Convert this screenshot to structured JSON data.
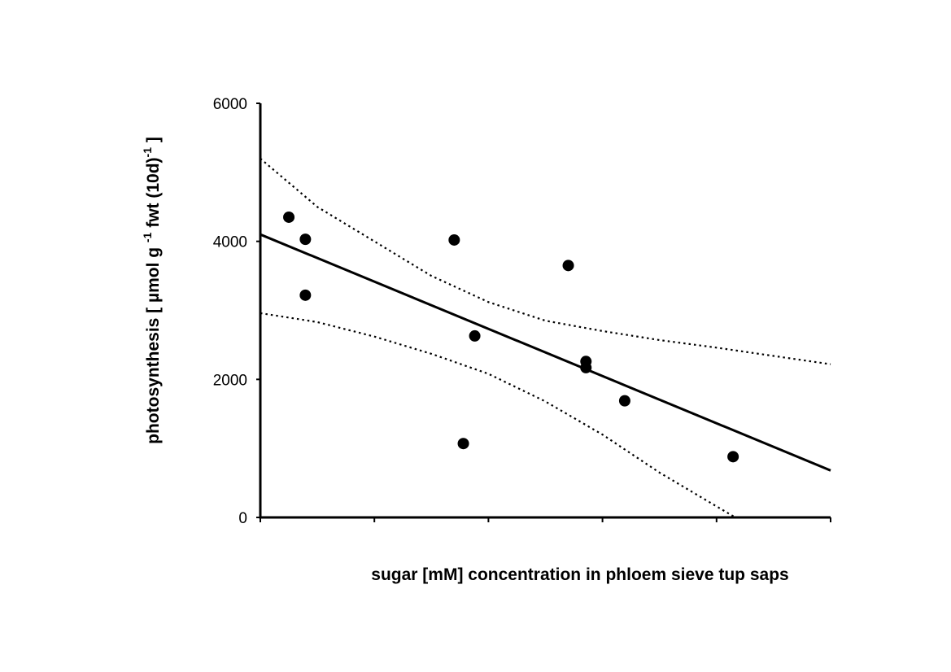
{
  "chart_data": {
    "type": "scatter",
    "xlabel": "sugar [mM] concentration in phloem sieve tup saps",
    "ylabel_parts": [
      "photosynthesis [ µmol g ",
      "-1",
      " fwt (10d)",
      "-1",
      " ]"
    ],
    "ylim": [
      0,
      6000
    ],
    "yticks": [
      "0",
      "2000",
      "4000",
      "6000"
    ],
    "xlim": [
      0,
      100
    ],
    "x_tick_count": 6,
    "x_tick_labels_shown": false,
    "grid": false,
    "legend": "none",
    "points": [
      {
        "x": 5.0,
        "y": 4350
      },
      {
        "x": 7.9,
        "y": 4030
      },
      {
        "x": 7.9,
        "y": 3220
      },
      {
        "x": 34.0,
        "y": 4020
      },
      {
        "x": 35.6,
        "y": 1070
      },
      {
        "x": 37.6,
        "y": 2630
      },
      {
        "x": 54.0,
        "y": 3650
      },
      {
        "x": 57.1,
        "y": 2260
      },
      {
        "x": 57.1,
        "y": 2170
      },
      {
        "x": 63.9,
        "y": 1690
      },
      {
        "x": 82.9,
        "y": 880
      }
    ],
    "regression_line": {
      "x": [
        0,
        100
      ],
      "y": [
        4100,
        680
      ]
    },
    "confidence_upper": {
      "x": [
        0,
        10,
        20,
        30,
        40,
        50,
        60,
        70,
        80,
        90,
        100
      ],
      "y": [
        5200,
        4500,
        4000,
        3500,
        3120,
        2850,
        2700,
        2570,
        2460,
        2340,
        2220
      ]
    },
    "confidence_lower": {
      "x": [
        0,
        10,
        20,
        30,
        40,
        50,
        60,
        70,
        80,
        83.3
      ],
      "y": [
        2960,
        2830,
        2620,
        2370,
        2080,
        1680,
        1200,
        650,
        160,
        0
      ]
    },
    "colors": {
      "points": "#000000",
      "line": "#000000",
      "axes": "#000000"
    }
  }
}
